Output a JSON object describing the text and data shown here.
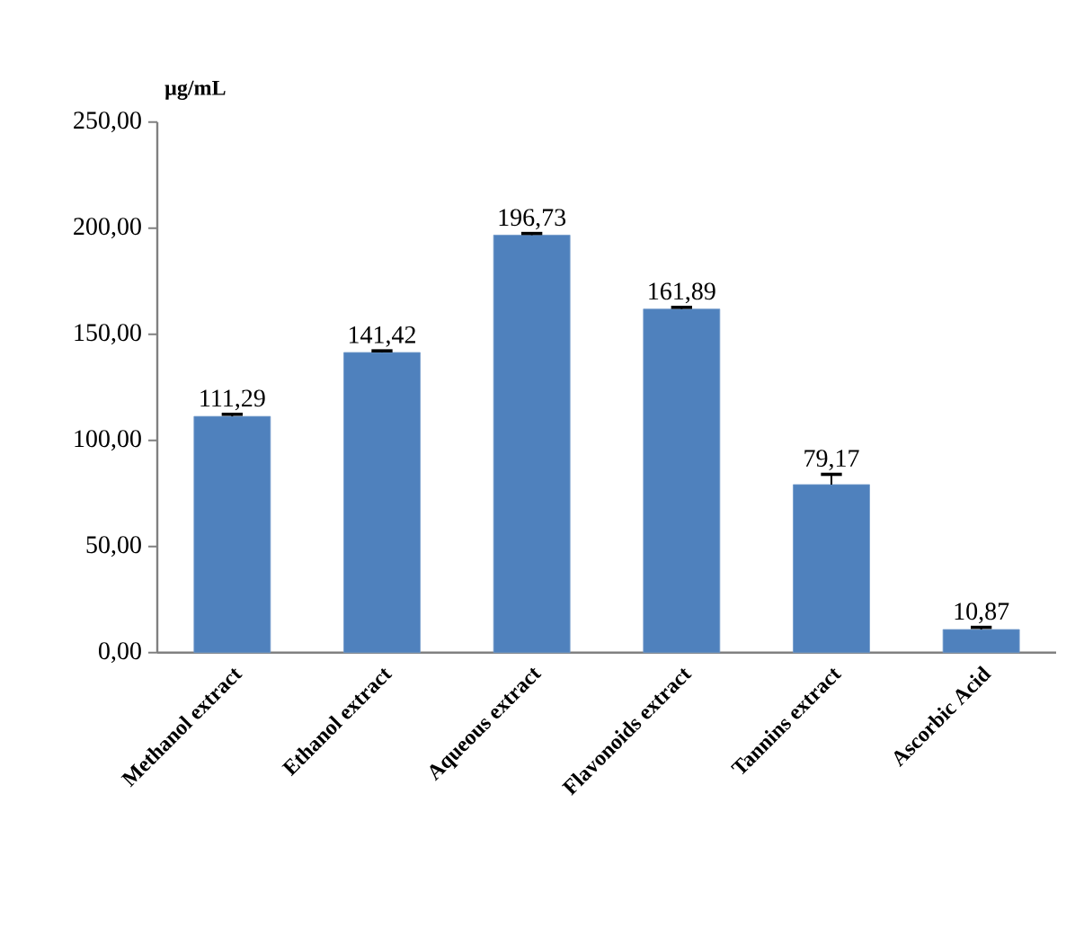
{
  "chart_data": {
    "type": "bar",
    "ylabel": "**µg/mL**",
    "categories": [
      "Methanol extract",
      "Ethanol extract",
      "Aqueous extract",
      "Flavonoids extract",
      "Tannins extract",
      "Ascorbic Acid"
    ],
    "values": [
      111.29,
      141.42,
      196.73,
      161.89,
      79.17,
      10.87
    ],
    "value_labels": [
      "111,29",
      "141,42",
      "196,73",
      "161,89",
      "79,17",
      "10,87"
    ],
    "errors": [
      [
        111.29,
        112.3
      ],
      [
        141.42,
        142.2
      ],
      [
        196.73,
        197.5
      ],
      [
        161.89,
        162.7
      ],
      [
        79.17,
        84.0
      ],
      [
        10.87,
        11.9
      ]
    ],
    "color": "#4f81bd",
    "ylim": [
      0,
      250
    ],
    "yticks": [
      {
        "value": 0,
        "label": "0,00"
      },
      {
        "value": 50,
        "label": "50,00"
      },
      {
        "value": 100,
        "label": "100,00"
      },
      {
        "value": 150,
        "label": "150,00"
      },
      {
        "value": 200,
        "label": "200,00"
      },
      {
        "value": 250,
        "label": "250,00"
      }
    ],
    "grid": false
  }
}
